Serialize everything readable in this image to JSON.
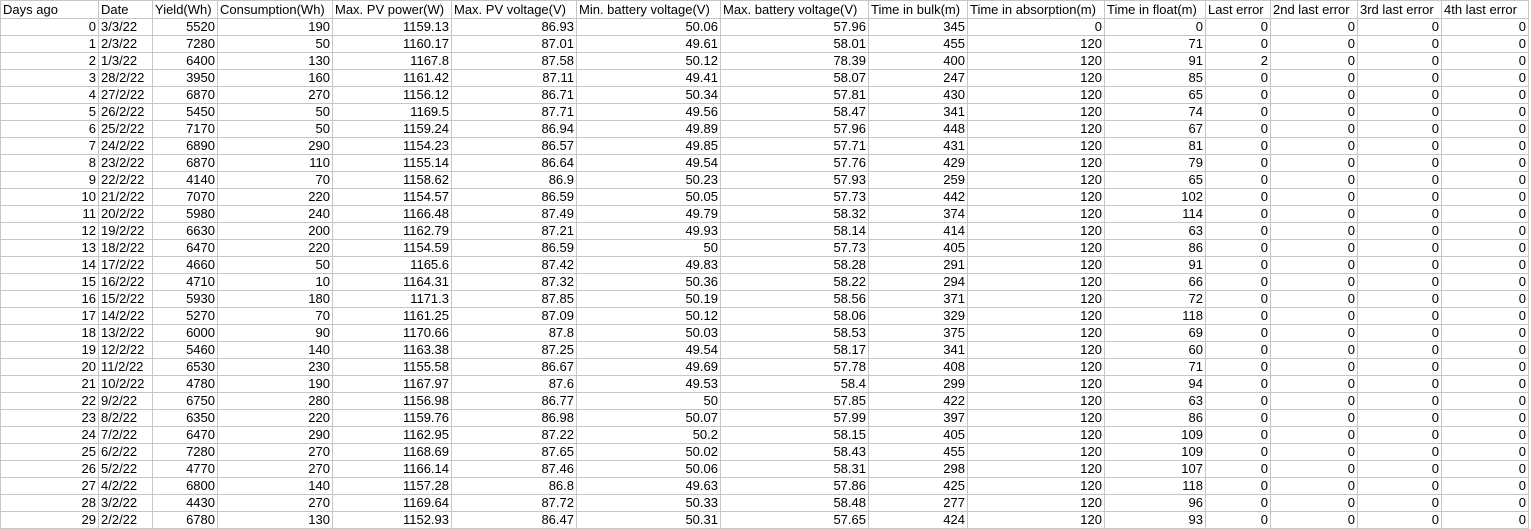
{
  "sheet": {
    "headers": [
      "Days ago",
      "Date",
      "Yield(Wh)",
      "Consumption(Wh)",
      "Max. PV power(W)",
      "Max. PV voltage(V)",
      "Min. battery voltage(V)",
      "Max. battery voltage(V)",
      "Time in bulk(m)",
      "Time in absorption(m)",
      "Time in float(m)",
      "Last error",
      "2nd last error",
      "3rd last error",
      "4th last error"
    ],
    "rows": [
      [
        "0",
        "3/3/22",
        "5520",
        "190",
        "1159.13",
        "86.93",
        "50.06",
        "57.96",
        "345",
        "0",
        "0",
        "0",
        "0",
        "0",
        "0"
      ],
      [
        "1",
        "2/3/22",
        "7280",
        "50",
        "1160.17",
        "87.01",
        "49.61",
        "58.01",
        "455",
        "120",
        "71",
        "0",
        "0",
        "0",
        "0"
      ],
      [
        "2",
        "1/3/22",
        "6400",
        "130",
        "1167.8",
        "87.58",
        "50.12",
        "78.39",
        "400",
        "120",
        "91",
        "2",
        "0",
        "0",
        "0"
      ],
      [
        "3",
        "28/2/22",
        "3950",
        "160",
        "1161.42",
        "87.11",
        "49.41",
        "58.07",
        "247",
        "120",
        "85",
        "0",
        "0",
        "0",
        "0"
      ],
      [
        "4",
        "27/2/22",
        "6870",
        "270",
        "1156.12",
        "86.71",
        "50.34",
        "57.81",
        "430",
        "120",
        "65",
        "0",
        "0",
        "0",
        "0"
      ],
      [
        "5",
        "26/2/22",
        "5450",
        "50",
        "1169.5",
        "87.71",
        "49.56",
        "58.47",
        "341",
        "120",
        "74",
        "0",
        "0",
        "0",
        "0"
      ],
      [
        "6",
        "25/2/22",
        "7170",
        "50",
        "1159.24",
        "86.94",
        "49.89",
        "57.96",
        "448",
        "120",
        "67",
        "0",
        "0",
        "0",
        "0"
      ],
      [
        "7",
        "24/2/22",
        "6890",
        "290",
        "1154.23",
        "86.57",
        "49.85",
        "57.71",
        "431",
        "120",
        "81",
        "0",
        "0",
        "0",
        "0"
      ],
      [
        "8",
        "23/2/22",
        "6870",
        "110",
        "1155.14",
        "86.64",
        "49.54",
        "57.76",
        "429",
        "120",
        "79",
        "0",
        "0",
        "0",
        "0"
      ],
      [
        "9",
        "22/2/22",
        "4140",
        "70",
        "1158.62",
        "86.9",
        "50.23",
        "57.93",
        "259",
        "120",
        "65",
        "0",
        "0",
        "0",
        "0"
      ],
      [
        "10",
        "21/2/22",
        "7070",
        "220",
        "1154.57",
        "86.59",
        "50.05",
        "57.73",
        "442",
        "120",
        "102",
        "0",
        "0",
        "0",
        "0"
      ],
      [
        "11",
        "20/2/22",
        "5980",
        "240",
        "1166.48",
        "87.49",
        "49.79",
        "58.32",
        "374",
        "120",
        "114",
        "0",
        "0",
        "0",
        "0"
      ],
      [
        "12",
        "19/2/22",
        "6630",
        "200",
        "1162.79",
        "87.21",
        "49.93",
        "58.14",
        "414",
        "120",
        "63",
        "0",
        "0",
        "0",
        "0"
      ],
      [
        "13",
        "18/2/22",
        "6470",
        "220",
        "1154.59",
        "86.59",
        "50",
        "57.73",
        "405",
        "120",
        "86",
        "0",
        "0",
        "0",
        "0"
      ],
      [
        "14",
        "17/2/22",
        "4660",
        "50",
        "1165.6",
        "87.42",
        "49.83",
        "58.28",
        "291",
        "120",
        "91",
        "0",
        "0",
        "0",
        "0"
      ],
      [
        "15",
        "16/2/22",
        "4710",
        "10",
        "1164.31",
        "87.32",
        "50.36",
        "58.22",
        "294",
        "120",
        "66",
        "0",
        "0",
        "0",
        "0"
      ],
      [
        "16",
        "15/2/22",
        "5930",
        "180",
        "1171.3",
        "87.85",
        "50.19",
        "58.56",
        "371",
        "120",
        "72",
        "0",
        "0",
        "0",
        "0"
      ],
      [
        "17",
        "14/2/22",
        "5270",
        "70",
        "1161.25",
        "87.09",
        "50.12",
        "58.06",
        "329",
        "120",
        "118",
        "0",
        "0",
        "0",
        "0"
      ],
      [
        "18",
        "13/2/22",
        "6000",
        "90",
        "1170.66",
        "87.8",
        "50.03",
        "58.53",
        "375",
        "120",
        "69",
        "0",
        "0",
        "0",
        "0"
      ],
      [
        "19",
        "12/2/22",
        "5460",
        "140",
        "1163.38",
        "87.25",
        "49.54",
        "58.17",
        "341",
        "120",
        "60",
        "0",
        "0",
        "0",
        "0"
      ],
      [
        "20",
        "11/2/22",
        "6530",
        "230",
        "1155.58",
        "86.67",
        "49.69",
        "57.78",
        "408",
        "120",
        "71",
        "0",
        "0",
        "0",
        "0"
      ],
      [
        "21",
        "10/2/22",
        "4780",
        "190",
        "1167.97",
        "87.6",
        "49.53",
        "58.4",
        "299",
        "120",
        "94",
        "0",
        "0",
        "0",
        "0"
      ],
      [
        "22",
        "9/2/22",
        "6750",
        "280",
        "1156.98",
        "86.77",
        "50",
        "57.85",
        "422",
        "120",
        "63",
        "0",
        "0",
        "0",
        "0"
      ],
      [
        "23",
        "8/2/22",
        "6350",
        "220",
        "1159.76",
        "86.98",
        "50.07",
        "57.99",
        "397",
        "120",
        "86",
        "0",
        "0",
        "0",
        "0"
      ],
      [
        "24",
        "7/2/22",
        "6470",
        "290",
        "1162.95",
        "87.22",
        "50.2",
        "58.15",
        "405",
        "120",
        "109",
        "0",
        "0",
        "0",
        "0"
      ],
      [
        "25",
        "6/2/22",
        "7280",
        "270",
        "1168.69",
        "87.65",
        "50.02",
        "58.43",
        "455",
        "120",
        "109",
        "0",
        "0",
        "0",
        "0"
      ],
      [
        "26",
        "5/2/22",
        "4770",
        "270",
        "1166.14",
        "87.46",
        "50.06",
        "58.31",
        "298",
        "120",
        "107",
        "0",
        "0",
        "0",
        "0"
      ],
      [
        "27",
        "4/2/22",
        "6800",
        "140",
        "1157.28",
        "86.8",
        "49.63",
        "57.86",
        "425",
        "120",
        "118",
        "0",
        "0",
        "0",
        "0"
      ],
      [
        "28",
        "3/2/22",
        "4430",
        "270",
        "1169.64",
        "87.72",
        "50.33",
        "58.48",
        "277",
        "120",
        "96",
        "0",
        "0",
        "0",
        "0"
      ],
      [
        "29",
        "2/2/22",
        "6780",
        "130",
        "1152.93",
        "86.47",
        "50.31",
        "57.65",
        "424",
        "120",
        "93",
        "0",
        "0",
        "0",
        "0"
      ]
    ]
  }
}
